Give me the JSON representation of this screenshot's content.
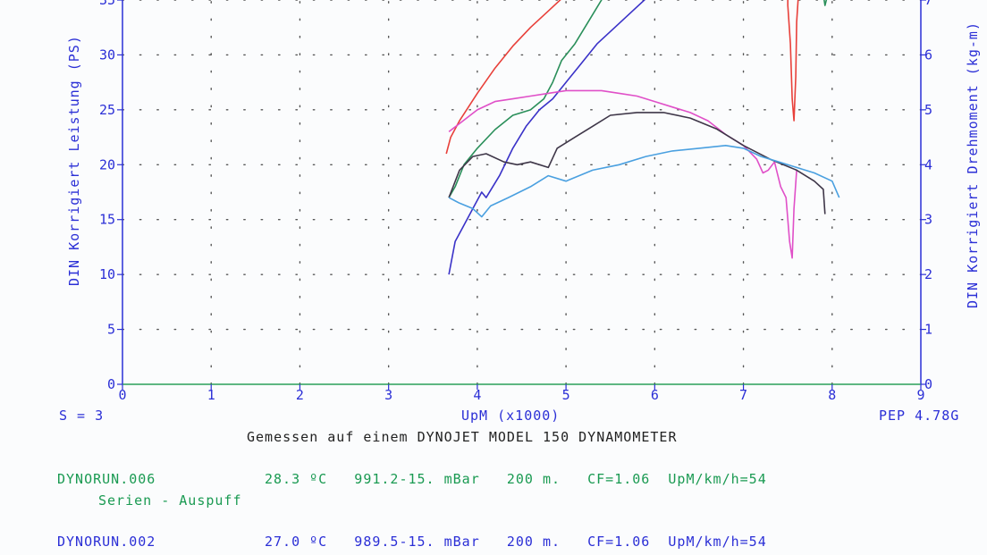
{
  "chart_data": {
    "type": "line",
    "xlabel": "UpM (x1000)",
    "ylabel_left": "DIN Korrigiert Leistung (PS)",
    "ylabel_right": "DIN Korrigiert Drehmoment (kg-m)",
    "xlim": [
      0,
      9
    ],
    "ylim_left": [
      0,
      35
    ],
    "ylim_right": [
      0,
      7
    ],
    "x_ticks": [
      "0",
      "1",
      "2",
      "3",
      "4",
      "5",
      "6",
      "7",
      "8",
      "9"
    ],
    "y_ticks_left": [
      "0",
      "5",
      "10",
      "15",
      "20",
      "25",
      "30",
      "35"
    ],
    "y_ticks_right": [
      "0",
      "1",
      "2",
      "3",
      "4",
      "5",
      "6",
      "7"
    ],
    "grid": true,
    "series": [
      {
        "axis": "left",
        "color": "#e8403a",
        "points": [
          [
            3.65,
            21
          ],
          [
            3.7,
            22.5
          ],
          [
            3.8,
            24
          ],
          [
            4.0,
            26.5
          ],
          [
            4.2,
            28.8
          ],
          [
            4.4,
            30.8
          ],
          [
            4.6,
            32.5
          ],
          [
            4.8,
            34
          ],
          [
            5.0,
            35.5
          ],
          [
            7.5,
            35.5
          ],
          [
            7.5,
            34.5
          ],
          [
            7.53,
            31
          ],
          [
            7.55,
            26
          ],
          [
            7.57,
            24
          ],
          [
            7.59,
            28
          ],
          [
            7.6,
            33
          ],
          [
            7.62,
            35.5
          ]
        ]
      },
      {
        "axis": "left",
        "color": "#2a8f5a",
        "points": [
          [
            3.68,
            17
          ],
          [
            3.75,
            18
          ],
          [
            3.85,
            20
          ],
          [
            4.0,
            21.5
          ],
          [
            4.2,
            23.2
          ],
          [
            4.4,
            24.5
          ],
          [
            4.6,
            25
          ],
          [
            4.75,
            26
          ],
          [
            4.85,
            27.5
          ],
          [
            4.95,
            29.5
          ],
          [
            5.1,
            31
          ],
          [
            5.25,
            33
          ],
          [
            5.4,
            35
          ],
          [
            5.45,
            36
          ],
          [
            7.9,
            35.5
          ],
          [
            7.92,
            34.5
          ],
          [
            7.95,
            35.5
          ]
        ]
      },
      {
        "axis": "left",
        "color": "#3a32c8",
        "points": [
          [
            3.68,
            10
          ],
          [
            3.75,
            13
          ],
          [
            3.85,
            14.5
          ],
          [
            3.95,
            16
          ],
          [
            4.05,
            17.5
          ],
          [
            4.1,
            17
          ],
          [
            4.25,
            19
          ],
          [
            4.4,
            21.5
          ],
          [
            4.55,
            23.5
          ],
          [
            4.7,
            25
          ],
          [
            4.85,
            26
          ],
          [
            5.0,
            27.5
          ],
          [
            5.15,
            29
          ],
          [
            5.35,
            31
          ],
          [
            5.55,
            32.5
          ],
          [
            5.75,
            34
          ],
          [
            5.95,
            35.5
          ],
          [
            6.0,
            36
          ]
        ]
      },
      {
        "axis": "right",
        "color": "#e050c8",
        "points": [
          [
            3.68,
            4.6
          ],
          [
            3.8,
            4.75
          ],
          [
            4.0,
            5.0
          ],
          [
            4.2,
            5.15
          ],
          [
            4.4,
            5.2
          ],
          [
            4.6,
            5.25
          ],
          [
            4.8,
            5.3
          ],
          [
            5.0,
            5.35
          ],
          [
            5.2,
            5.35
          ],
          [
            5.4,
            5.35
          ],
          [
            5.6,
            5.3
          ],
          [
            5.8,
            5.25
          ],
          [
            6.0,
            5.15
          ],
          [
            6.2,
            5.05
          ],
          [
            6.4,
            4.95
          ],
          [
            6.6,
            4.8
          ],
          [
            6.8,
            4.55
          ],
          [
            7.0,
            4.35
          ],
          [
            7.15,
            4.1
          ],
          [
            7.22,
            3.85
          ],
          [
            7.28,
            3.9
          ],
          [
            7.35,
            4.05
          ],
          [
            7.42,
            3.6
          ],
          [
            7.48,
            3.4
          ],
          [
            7.52,
            2.6
          ],
          [
            7.55,
            2.3
          ],
          [
            7.57,
            3.2
          ],
          [
            7.6,
            3.9
          ]
        ]
      },
      {
        "axis": "right",
        "color": "#3e3648",
        "points": [
          [
            3.68,
            3.4
          ],
          [
            3.8,
            3.9
          ],
          [
            3.95,
            4.15
          ],
          [
            4.1,
            4.2
          ],
          [
            4.3,
            4.05
          ],
          [
            4.45,
            4.0
          ],
          [
            4.6,
            4.05
          ],
          [
            4.8,
            3.95
          ],
          [
            4.9,
            4.3
          ],
          [
            5.1,
            4.5
          ],
          [
            5.3,
            4.7
          ],
          [
            5.5,
            4.9
          ],
          [
            5.8,
            4.95
          ],
          [
            6.1,
            4.95
          ],
          [
            6.4,
            4.85
          ],
          [
            6.7,
            4.65
          ],
          [
            7.0,
            4.35
          ],
          [
            7.3,
            4.1
          ],
          [
            7.6,
            3.9
          ],
          [
            7.8,
            3.7
          ],
          [
            7.9,
            3.55
          ],
          [
            7.92,
            3.1
          ]
        ]
      },
      {
        "axis": "right",
        "color": "#4aa0e0",
        "points": [
          [
            3.68,
            3.4
          ],
          [
            3.8,
            3.3
          ],
          [
            3.95,
            3.2
          ],
          [
            4.05,
            3.05
          ],
          [
            4.15,
            3.25
          ],
          [
            4.35,
            3.4
          ],
          [
            4.6,
            3.6
          ],
          [
            4.8,
            3.8
          ],
          [
            5.0,
            3.7
          ],
          [
            5.3,
            3.9
          ],
          [
            5.6,
            4.0
          ],
          [
            5.9,
            4.15
          ],
          [
            6.2,
            4.25
          ],
          [
            6.5,
            4.3
          ],
          [
            6.8,
            4.35
          ],
          [
            7.0,
            4.3
          ],
          [
            7.2,
            4.15
          ],
          [
            7.4,
            4.05
          ],
          [
            7.6,
            3.95
          ],
          [
            7.8,
            3.85
          ],
          [
            8.0,
            3.7
          ],
          [
            8.08,
            3.4
          ]
        ]
      }
    ]
  },
  "footer": {
    "s_label": "S = 3",
    "pep_label": "PEP 4.78G",
    "measured": "Gemessen auf einem DYNOJET MODEL 150 DYNAMOMETER",
    "runs": [
      {
        "name": "DYNORUN.006",
        "details": "28.3 ºC   991.2-15. mBar   200 m.   CF=1.06  UpM/km/h=54",
        "note": "Serien - Auspuff"
      },
      {
        "name": "DYNORUN.002",
        "details": "27.0 ºC   989.5-15. mBar   200 m.   CF=1.06  UpM/km/h=54"
      }
    ]
  }
}
